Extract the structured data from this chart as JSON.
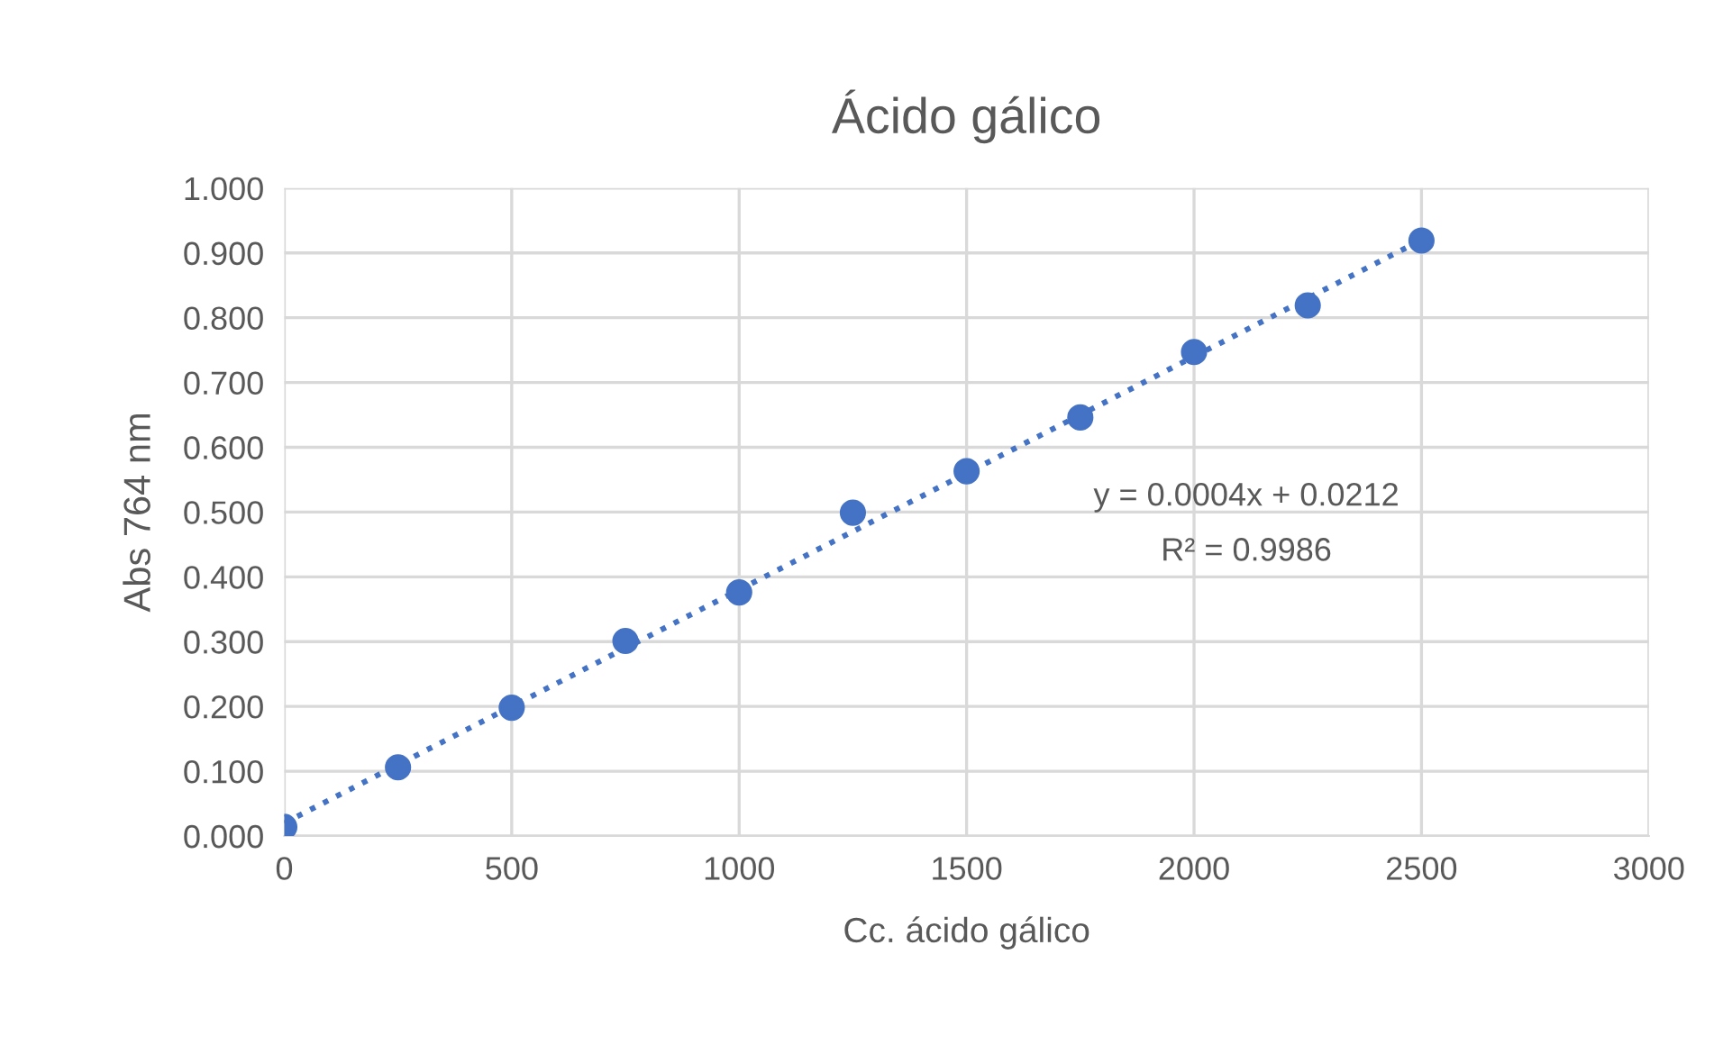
{
  "chart_data": {
    "type": "scatter",
    "title": "Ácido gálico",
    "xlabel": "Cc. ácido gálico",
    "ylabel": "Abs 764 nm",
    "x": [
      0,
      250,
      500,
      750,
      1000,
      1250,
      1500,
      1750,
      2000,
      2250,
      2500
    ],
    "series": [
      {
        "color": "#4472c4",
        "marker": "circle",
        "values": [
          0.014,
          0.106,
          0.198,
          0.301,
          0.376,
          0.499,
          0.563,
          0.646,
          0.747,
          0.819,
          0.919
        ]
      },
      {
        "type": "line",
        "color": "#4472c4",
        "line_style": "dotted",
        "marker": "none",
        "x": [
          0,
          2500
        ],
        "values": [
          0.02,
          0.92
        ]
      }
    ],
    "annotations": [
      "y = 0.0004x + 0.0212",
      "R² = 0.9986"
    ],
    "xlim": [
      0,
      3000
    ],
    "xticks": [
      0,
      500,
      1000,
      1500,
      2000,
      2500,
      3000
    ],
    "ylim": [
      0,
      1.0
    ],
    "yticks": [
      {
        "value": 0,
        "label": "0.000"
      },
      {
        "value": 0.1,
        "label": "0.100"
      },
      {
        "value": 0.2,
        "label": "0.200"
      },
      {
        "value": 0.3,
        "label": "0.300"
      },
      {
        "value": 0.4,
        "label": "0.400"
      },
      {
        "value": 0.5,
        "label": "0.500"
      },
      {
        "value": 0.6,
        "label": "0.600"
      },
      {
        "value": 0.7,
        "label": "0.700"
      },
      {
        "value": 0.8,
        "label": "0.800"
      },
      {
        "value": 0.9,
        "label": "0.900"
      },
      {
        "value": 1.0,
        "label": "1.000"
      }
    ],
    "grid": true
  }
}
